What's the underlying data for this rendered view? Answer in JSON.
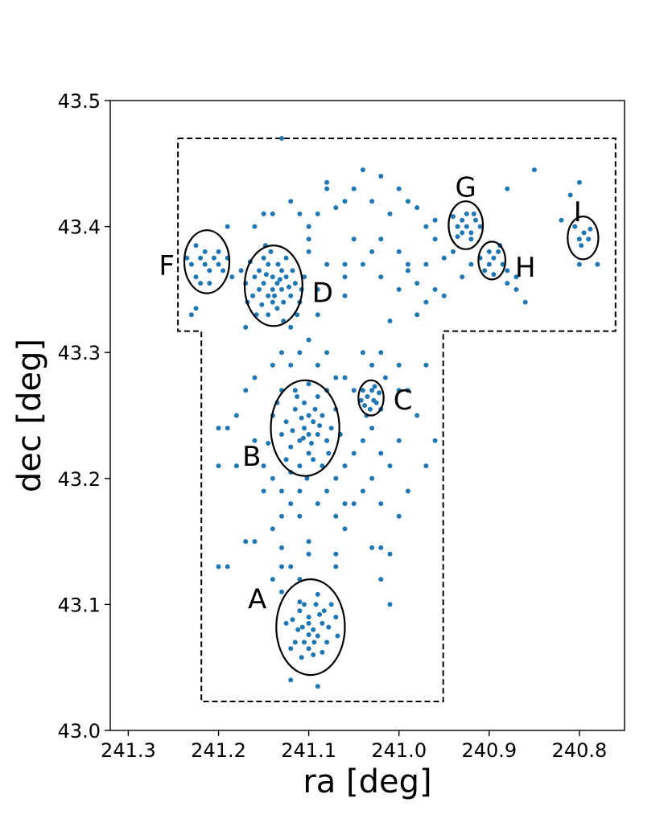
{
  "chart_data": {
    "type": "scatter",
    "title": "",
    "xlabel": "ra [deg]",
    "ylabel": "dec [deg]",
    "xlim": [
      241.32,
      240.75
    ],
    "ylim": [
      43.0,
      43.5
    ],
    "x_inverted": true,
    "xticks": [
      241.3,
      241.2,
      241.1,
      241.0,
      240.9,
      240.8
    ],
    "xtick_labels": [
      "241.3",
      "241.2",
      "241.1",
      "241.0",
      "240.9",
      "240.8"
    ],
    "yticks": [
      43.0,
      43.1,
      43.2,
      43.3,
      43.4,
      43.5
    ],
    "ytick_labels": [
      "43.0",
      "43.1",
      "43.2",
      "43.3",
      "43.4",
      "43.5"
    ],
    "grid": false,
    "legend": "none",
    "point_color": "#1f77b4",
    "circle_color": "#000000",
    "boundary_color": "#000000",
    "survey_boundary": [
      [
        241.245,
        43.47
      ],
      [
        240.76,
        43.47
      ],
      [
        240.76,
        43.317
      ],
      [
        240.951,
        43.317
      ],
      [
        240.951,
        43.023
      ],
      [
        241.219,
        43.023
      ],
      [
        241.219,
        43.317
      ],
      [
        241.245,
        43.317
      ],
      [
        241.245,
        43.47
      ]
    ],
    "regions": [
      {
        "label": "A",
        "ra": 241.098,
        "dec": 43.082,
        "radius": 0.038
      },
      {
        "label": "B",
        "ra": 241.104,
        "dec": 43.24,
        "radius": 0.038
      },
      {
        "label": "C",
        "ra": 241.031,
        "dec": 43.264,
        "radius": 0.014
      },
      {
        "label": "D",
        "ra": 241.139,
        "dec": 43.353,
        "radius": 0.032
      },
      {
        "label": "F",
        "ra": 241.213,
        "dec": 43.372,
        "radius": 0.025
      },
      {
        "label": "G",
        "ra": 240.926,
        "dec": 43.401,
        "radius": 0.019
      },
      {
        "label": "H",
        "ra": 240.897,
        "dec": 43.373,
        "radius": 0.015
      },
      {
        "label": "I",
        "ra": 240.796,
        "dec": 43.391,
        "radius": 0.017
      }
    ],
    "points": [
      [
        241.095,
        43.08
      ],
      [
        241.1,
        43.09
      ],
      [
        241.105,
        43.07
      ],
      [
        241.09,
        43.075
      ],
      [
        241.085,
        43.085
      ],
      [
        241.11,
        43.095
      ],
      [
        241.1,
        43.065
      ],
      [
        241.092,
        43.1
      ],
      [
        241.112,
        43.08
      ],
      [
        241.08,
        43.07
      ],
      [
        241.105,
        43.1
      ],
      [
        241.095,
        43.06
      ],
      [
        241.088,
        43.092
      ],
      [
        241.118,
        43.088
      ],
      [
        241.078,
        43.082
      ],
      [
        241.1,
        43.076
      ],
      [
        241.12,
        43.065
      ],
      [
        241.07,
        43.09
      ],
      [
        241.108,
        43.058
      ],
      [
        241.085,
        43.062
      ],
      [
        241.125,
        43.085
      ],
      [
        241.075,
        43.1
      ],
      [
        241.09,
        43.108
      ],
      [
        241.115,
        43.07
      ],
      [
        241.068,
        43.075
      ],
      [
        241.1,
        43.085
      ],
      [
        241.083,
        43.095
      ],
      [
        241.107,
        43.082
      ],
      [
        241.094,
        43.07
      ],
      [
        241.11,
        43.102
      ],
      [
        241.105,
        43.24
      ],
      [
        241.1,
        43.25
      ],
      [
        241.11,
        43.23
      ],
      [
        241.095,
        43.245
      ],
      [
        241.115,
        43.255
      ],
      [
        241.09,
        43.235
      ],
      [
        241.12,
        43.225
      ],
      [
        241.1,
        43.22
      ],
      [
        241.105,
        43.26
      ],
      [
        241.085,
        43.25
      ],
      [
        241.125,
        43.245
      ],
      [
        241.095,
        43.215
      ],
      [
        241.11,
        43.21
      ],
      [
        241.08,
        43.23
      ],
      [
        241.13,
        43.235
      ],
      [
        241.1,
        43.235
      ],
      [
        241.09,
        43.265
      ],
      [
        241.115,
        43.27
      ],
      [
        241.075,
        43.24
      ],
      [
        241.135,
        43.26
      ],
      [
        241.102,
        43.2
      ],
      [
        241.12,
        43.205
      ],
      [
        241.085,
        43.21
      ],
      [
        241.07,
        43.255
      ],
      [
        241.14,
        43.25
      ],
      [
        241.097,
        43.228
      ],
      [
        241.108,
        43.248
      ],
      [
        241.093,
        43.255
      ],
      [
        241.118,
        43.238
      ],
      [
        241.106,
        43.232
      ],
      [
        241.088,
        43.242
      ],
      [
        241.113,
        43.265
      ],
      [
        241.125,
        43.215
      ],
      [
        241.078,
        43.22
      ],
      [
        241.145,
        43.228
      ],
      [
        241.065,
        43.235
      ],
      [
        241.1,
        43.275
      ],
      [
        241.13,
        43.27
      ],
      [
        241.08,
        43.27
      ],
      [
        241.11,
        43.19
      ],
      [
        241.035,
        43.265
      ],
      [
        241.028,
        43.262
      ],
      [
        241.03,
        43.27
      ],
      [
        241.025,
        43.26
      ],
      [
        241.038,
        43.258
      ],
      [
        241.032,
        43.255
      ],
      [
        241.022,
        43.268
      ],
      [
        241.04,
        43.27
      ],
      [
        241.027,
        43.273
      ],
      [
        241.036,
        43.25
      ],
      [
        241.02,
        43.255
      ],
      [
        241.042,
        43.262
      ],
      [
        241.135,
        43.355
      ],
      [
        241.14,
        43.36
      ],
      [
        241.13,
        43.35
      ],
      [
        241.145,
        43.345
      ],
      [
        241.125,
        43.36
      ],
      [
        241.15,
        43.355
      ],
      [
        241.14,
        43.34
      ],
      [
        241.13,
        43.365
      ],
      [
        241.155,
        43.35
      ],
      [
        241.12,
        43.345
      ],
      [
        241.145,
        43.37
      ],
      [
        241.135,
        43.335
      ],
      [
        241.16,
        43.36
      ],
      [
        241.115,
        43.355
      ],
      [
        241.15,
        43.375
      ],
      [
        241.14,
        43.35
      ],
      [
        241.128,
        43.34
      ],
      [
        241.162,
        43.345
      ],
      [
        241.145,
        43.33
      ],
      [
        241.125,
        43.375
      ],
      [
        241.11,
        43.34
      ],
      [
        241.155,
        43.365
      ],
      [
        241.132,
        43.358
      ],
      [
        241.147,
        43.362
      ],
      [
        241.138,
        43.345
      ],
      [
        241.122,
        43.352
      ],
      [
        241.165,
        43.372
      ],
      [
        241.118,
        43.365
      ],
      [
        241.152,
        43.338
      ],
      [
        241.134,
        43.37
      ],
      [
        241.17,
        43.355
      ],
      [
        241.108,
        43.35
      ],
      [
        241.142,
        43.38
      ],
      [
        241.158,
        43.33
      ],
      [
        241.128,
        43.325
      ],
      [
        241.113,
        43.33
      ],
      [
        241.168,
        43.34
      ],
      [
        241.148,
        43.385
      ],
      [
        241.105,
        43.36
      ],
      [
        241.175,
        43.365
      ],
      [
        241.215,
        43.37
      ],
      [
        241.22,
        43.375
      ],
      [
        241.21,
        43.365
      ],
      [
        241.225,
        43.36
      ],
      [
        241.205,
        43.375
      ],
      [
        241.2,
        43.37
      ],
      [
        241.23,
        43.37
      ],
      [
        241.215,
        43.38
      ],
      [
        241.21,
        43.355
      ],
      [
        241.195,
        43.365
      ],
      [
        241.235,
        43.375
      ],
      [
        241.2,
        43.38
      ],
      [
        241.185,
        43.36
      ],
      [
        241.22,
        43.355
      ],
      [
        241.225,
        43.385
      ],
      [
        241.19,
        43.375
      ],
      [
        240.925,
        43.4
      ],
      [
        240.93,
        43.405
      ],
      [
        240.92,
        43.395
      ],
      [
        240.935,
        43.4
      ],
      [
        240.915,
        43.405
      ],
      [
        240.93,
        43.395
      ],
      [
        240.925,
        43.41
      ],
      [
        240.94,
        43.408
      ],
      [
        240.91,
        43.4
      ],
      [
        240.92,
        43.39
      ],
      [
        240.935,
        43.392
      ],
      [
        240.917,
        43.41
      ],
      [
        240.895,
        43.375
      ],
      [
        240.9,
        43.37
      ],
      [
        240.89,
        43.38
      ],
      [
        240.905,
        43.365
      ],
      [
        240.885,
        43.37
      ],
      [
        240.9,
        43.38
      ],
      [
        240.895,
        43.362
      ],
      [
        240.91,
        43.375
      ],
      [
        240.88,
        43.365
      ],
      [
        240.888,
        43.385
      ],
      [
        240.795,
        43.395
      ],
      [
        240.8,
        43.39
      ],
      [
        240.79,
        43.39
      ],
      [
        240.805,
        43.4
      ],
      [
        240.798,
        43.385
      ],
      [
        240.788,
        43.398
      ],
      [
        241.13,
        43.47
      ],
      [
        241.04,
        43.445
      ],
      [
        241.02,
        43.44
      ],
      [
        241.0,
        43.43
      ],
      [
        241.05,
        43.43
      ],
      [
        241.03,
        43.42
      ],
      [
        241.08,
        43.435
      ],
      [
        241.06,
        43.42
      ],
      [
        240.99,
        43.42
      ],
      [
        241.07,
        43.415
      ],
      [
        241.01,
        43.41
      ],
      [
        240.98,
        43.415
      ],
      [
        241.12,
        43.42
      ],
      [
        241.09,
        43.41
      ],
      [
        240.97,
        43.4
      ],
      [
        241.1,
        43.4
      ],
      [
        241.05,
        43.39
      ],
      [
        241.02,
        43.39
      ],
      [
        241.0,
        43.38
      ],
      [
        240.96,
        43.39
      ],
      [
        240.95,
        43.375
      ],
      [
        240.97,
        43.37
      ],
      [
        240.99,
        43.365
      ],
      [
        241.04,
        43.37
      ],
      [
        241.06,
        43.36
      ],
      [
        241.02,
        43.36
      ],
      [
        241.0,
        43.35
      ],
      [
        240.98,
        43.355
      ],
      [
        240.96,
        43.35
      ],
      [
        241.08,
        43.37
      ],
      [
        241.1,
        43.38
      ],
      [
        241.09,
        43.33
      ],
      [
        241.06,
        43.345
      ],
      [
        240.94,
        43.38
      ],
      [
        240.92,
        43.37
      ],
      [
        240.93,
        43.36
      ],
      [
        240.88,
        43.355
      ],
      [
        240.87,
        43.35
      ],
      [
        240.86,
        43.34
      ],
      [
        240.87,
        43.36
      ],
      [
        240.88,
        43.43
      ],
      [
        240.85,
        43.445
      ],
      [
        240.8,
        43.435
      ],
      [
        240.81,
        43.425
      ],
      [
        240.8,
        43.37
      ],
      [
        240.78,
        43.37
      ],
      [
        240.82,
        43.405
      ],
      [
        240.95,
        43.345
      ],
      [
        240.97,
        43.34
      ],
      [
        240.98,
        43.33
      ],
      [
        241.01,
        43.325
      ],
      [
        240.99,
        43.37
      ],
      [
        241.03,
        43.38
      ],
      [
        241.06,
        43.37
      ],
      [
        240.96,
        43.405
      ],
      [
        241.09,
        43.35
      ],
      [
        241.12,
        43.32
      ],
      [
        241.1,
        43.31
      ],
      [
        241.08,
        43.3
      ],
      [
        241.09,
        43.29
      ],
      [
        241.11,
        43.3
      ],
      [
        241.13,
        43.3
      ],
      [
        241.12,
        43.29
      ],
      [
        241.14,
        43.29
      ],
      [
        241.07,
        43.28
      ],
      [
        241.06,
        43.28
      ],
      [
        241.05,
        43.27
      ],
      [
        241.04,
        43.3
      ],
      [
        241.03,
        43.29
      ],
      [
        241.02,
        43.3
      ],
      [
        241.015,
        43.28
      ],
      [
        241.0,
        43.27
      ],
      [
        241.03,
        43.24
      ],
      [
        241.04,
        43.23
      ],
      [
        241.05,
        43.22
      ],
      [
        241.06,
        43.21
      ],
      [
        241.07,
        43.2
      ],
      [
        241.02,
        43.22
      ],
      [
        241.01,
        43.21
      ],
      [
        241.0,
        43.23
      ],
      [
        241.03,
        43.2
      ],
      [
        241.04,
        43.19
      ],
      [
        241.05,
        43.18
      ],
      [
        241.06,
        43.18
      ],
      [
        241.07,
        43.17
      ],
      [
        241.02,
        43.18
      ],
      [
        241.0,
        43.17
      ],
      [
        240.99,
        43.19
      ],
      [
        241.12,
        43.18
      ],
      [
        241.13,
        43.19
      ],
      [
        241.14,
        43.2
      ],
      [
        241.15,
        43.21
      ],
      [
        241.16,
        43.23
      ],
      [
        241.13,
        43.17
      ],
      [
        241.11,
        43.17
      ],
      [
        241.09,
        43.18
      ],
      [
        241.08,
        43.19
      ],
      [
        241.06,
        43.16
      ],
      [
        241.14,
        43.16
      ],
      [
        241.15,
        43.19
      ],
      [
        241.16,
        43.28
      ],
      [
        241.17,
        43.27
      ],
      [
        241.18,
        43.25
      ],
      [
        241.19,
        43.24
      ],
      [
        241.2,
        43.21
      ],
      [
        241.18,
        43.21
      ],
      [
        241.17,
        43.15
      ],
      [
        241.16,
        43.15
      ],
      [
        241.13,
        43.145
      ],
      [
        241.12,
        43.13
      ],
      [
        241.11,
        43.12
      ],
      [
        241.13,
        43.13
      ],
      [
        241.1,
        43.15
      ],
      [
        241.1,
        43.14
      ],
      [
        241.07,
        43.14
      ],
      [
        241.07,
        43.13
      ],
      [
        241.03,
        43.145
      ],
      [
        241.02,
        43.145
      ],
      [
        241.01,
        43.14
      ],
      [
        241.02,
        43.12
      ],
      [
        241.01,
        43.1
      ],
      [
        241.2,
        43.13
      ],
      [
        241.19,
        43.13
      ],
      [
        241.14,
        43.12
      ],
      [
        241.13,
        43.11
      ],
      [
        240.96,
        43.23
      ],
      [
        240.97,
        43.21
      ],
      [
        240.98,
        43.25
      ],
      [
        240.99,
        43.27
      ],
      [
        240.97,
        43.29
      ],
      [
        241.0,
        43.29
      ],
      [
        241.12,
        43.04
      ],
      [
        241.09,
        43.035
      ],
      [
        241.2,
        43.24
      ],
      [
        241.23,
        43.33
      ],
      [
        241.225,
        43.335
      ],
      [
        241.17,
        43.32
      ],
      [
        241.19,
        43.4
      ],
      [
        241.16,
        43.4
      ],
      [
        241.15,
        43.41
      ],
      [
        241.14,
        43.41
      ],
      [
        241.11,
        43.41
      ],
      [
        241.1,
        43.39
      ],
      [
        241.08,
        43.43
      ]
    ]
  }
}
